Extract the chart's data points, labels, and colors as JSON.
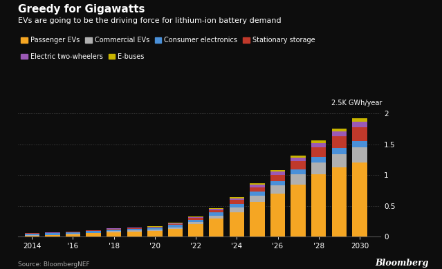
{
  "title": "Greedy for Gigawatts",
  "subtitle": "EVs are going to be the driving force for lithium-ion battery demand",
  "source": "Source: BloombergNEF",
  "watermark": "Bloomberg",
  "ylabel_annotation": "2.5K GWh/year",
  "background_color": "#0d0d0d",
  "text_color": "#ffffff",
  "years": [
    2014,
    2015,
    2016,
    2017,
    2018,
    2019,
    2020,
    2021,
    2022,
    2023,
    2024,
    2025,
    2026,
    2027,
    2028,
    2029,
    2030
  ],
  "series": {
    "Passenger EVs": [
      0.02,
      0.025,
      0.035,
      0.055,
      0.075,
      0.085,
      0.095,
      0.13,
      0.2,
      0.29,
      0.4,
      0.56,
      0.7,
      0.85,
      1.01,
      1.12,
      1.2
    ],
    "Commercial EVs": [
      0.005,
      0.006,
      0.008,
      0.01,
      0.013,
      0.014,
      0.016,
      0.022,
      0.035,
      0.052,
      0.075,
      0.1,
      0.13,
      0.16,
      0.19,
      0.215,
      0.245
    ],
    "Consumer electronics": [
      0.028,
      0.029,
      0.03,
      0.031,
      0.033,
      0.033,
      0.034,
      0.037,
      0.043,
      0.05,
      0.06,
      0.068,
      0.076,
      0.084,
      0.092,
      0.1,
      0.105
    ],
    "Stationary storage": [
      0.002,
      0.003,
      0.004,
      0.005,
      0.007,
      0.009,
      0.011,
      0.016,
      0.027,
      0.04,
      0.058,
      0.077,
      0.1,
      0.128,
      0.16,
      0.192,
      0.23
    ],
    "Electric two-wheelers": [
      0.003,
      0.004,
      0.005,
      0.006,
      0.007,
      0.008,
      0.009,
      0.012,
      0.016,
      0.022,
      0.03,
      0.04,
      0.05,
      0.06,
      0.07,
      0.078,
      0.088
    ],
    "E-buses": [
      0.002,
      0.002,
      0.003,
      0.003,
      0.004,
      0.005,
      0.005,
      0.006,
      0.009,
      0.011,
      0.016,
      0.02,
      0.025,
      0.031,
      0.038,
      0.045,
      0.055
    ]
  },
  "colors": {
    "Passenger EVs": "#f5a623",
    "Commercial EVs": "#b0b0b0",
    "Consumer electronics": "#4a90d9",
    "Stationary storage": "#c0392b",
    "Electric two-wheelers": "#9b59b6",
    "E-buses": "#c8b400"
  },
  "ylim": [
    0,
    2.05
  ],
  "yticks": [
    0,
    0.5,
    1.0,
    1.5,
    2.0
  ],
  "xtick_labels": [
    "2014",
    "'16",
    "'18",
    "'20",
    "'22",
    "'24",
    "'26",
    "'28",
    "2030"
  ],
  "xtick_positions": [
    2014,
    2016,
    2018,
    2020,
    2022,
    2024,
    2026,
    2028,
    2030
  ]
}
